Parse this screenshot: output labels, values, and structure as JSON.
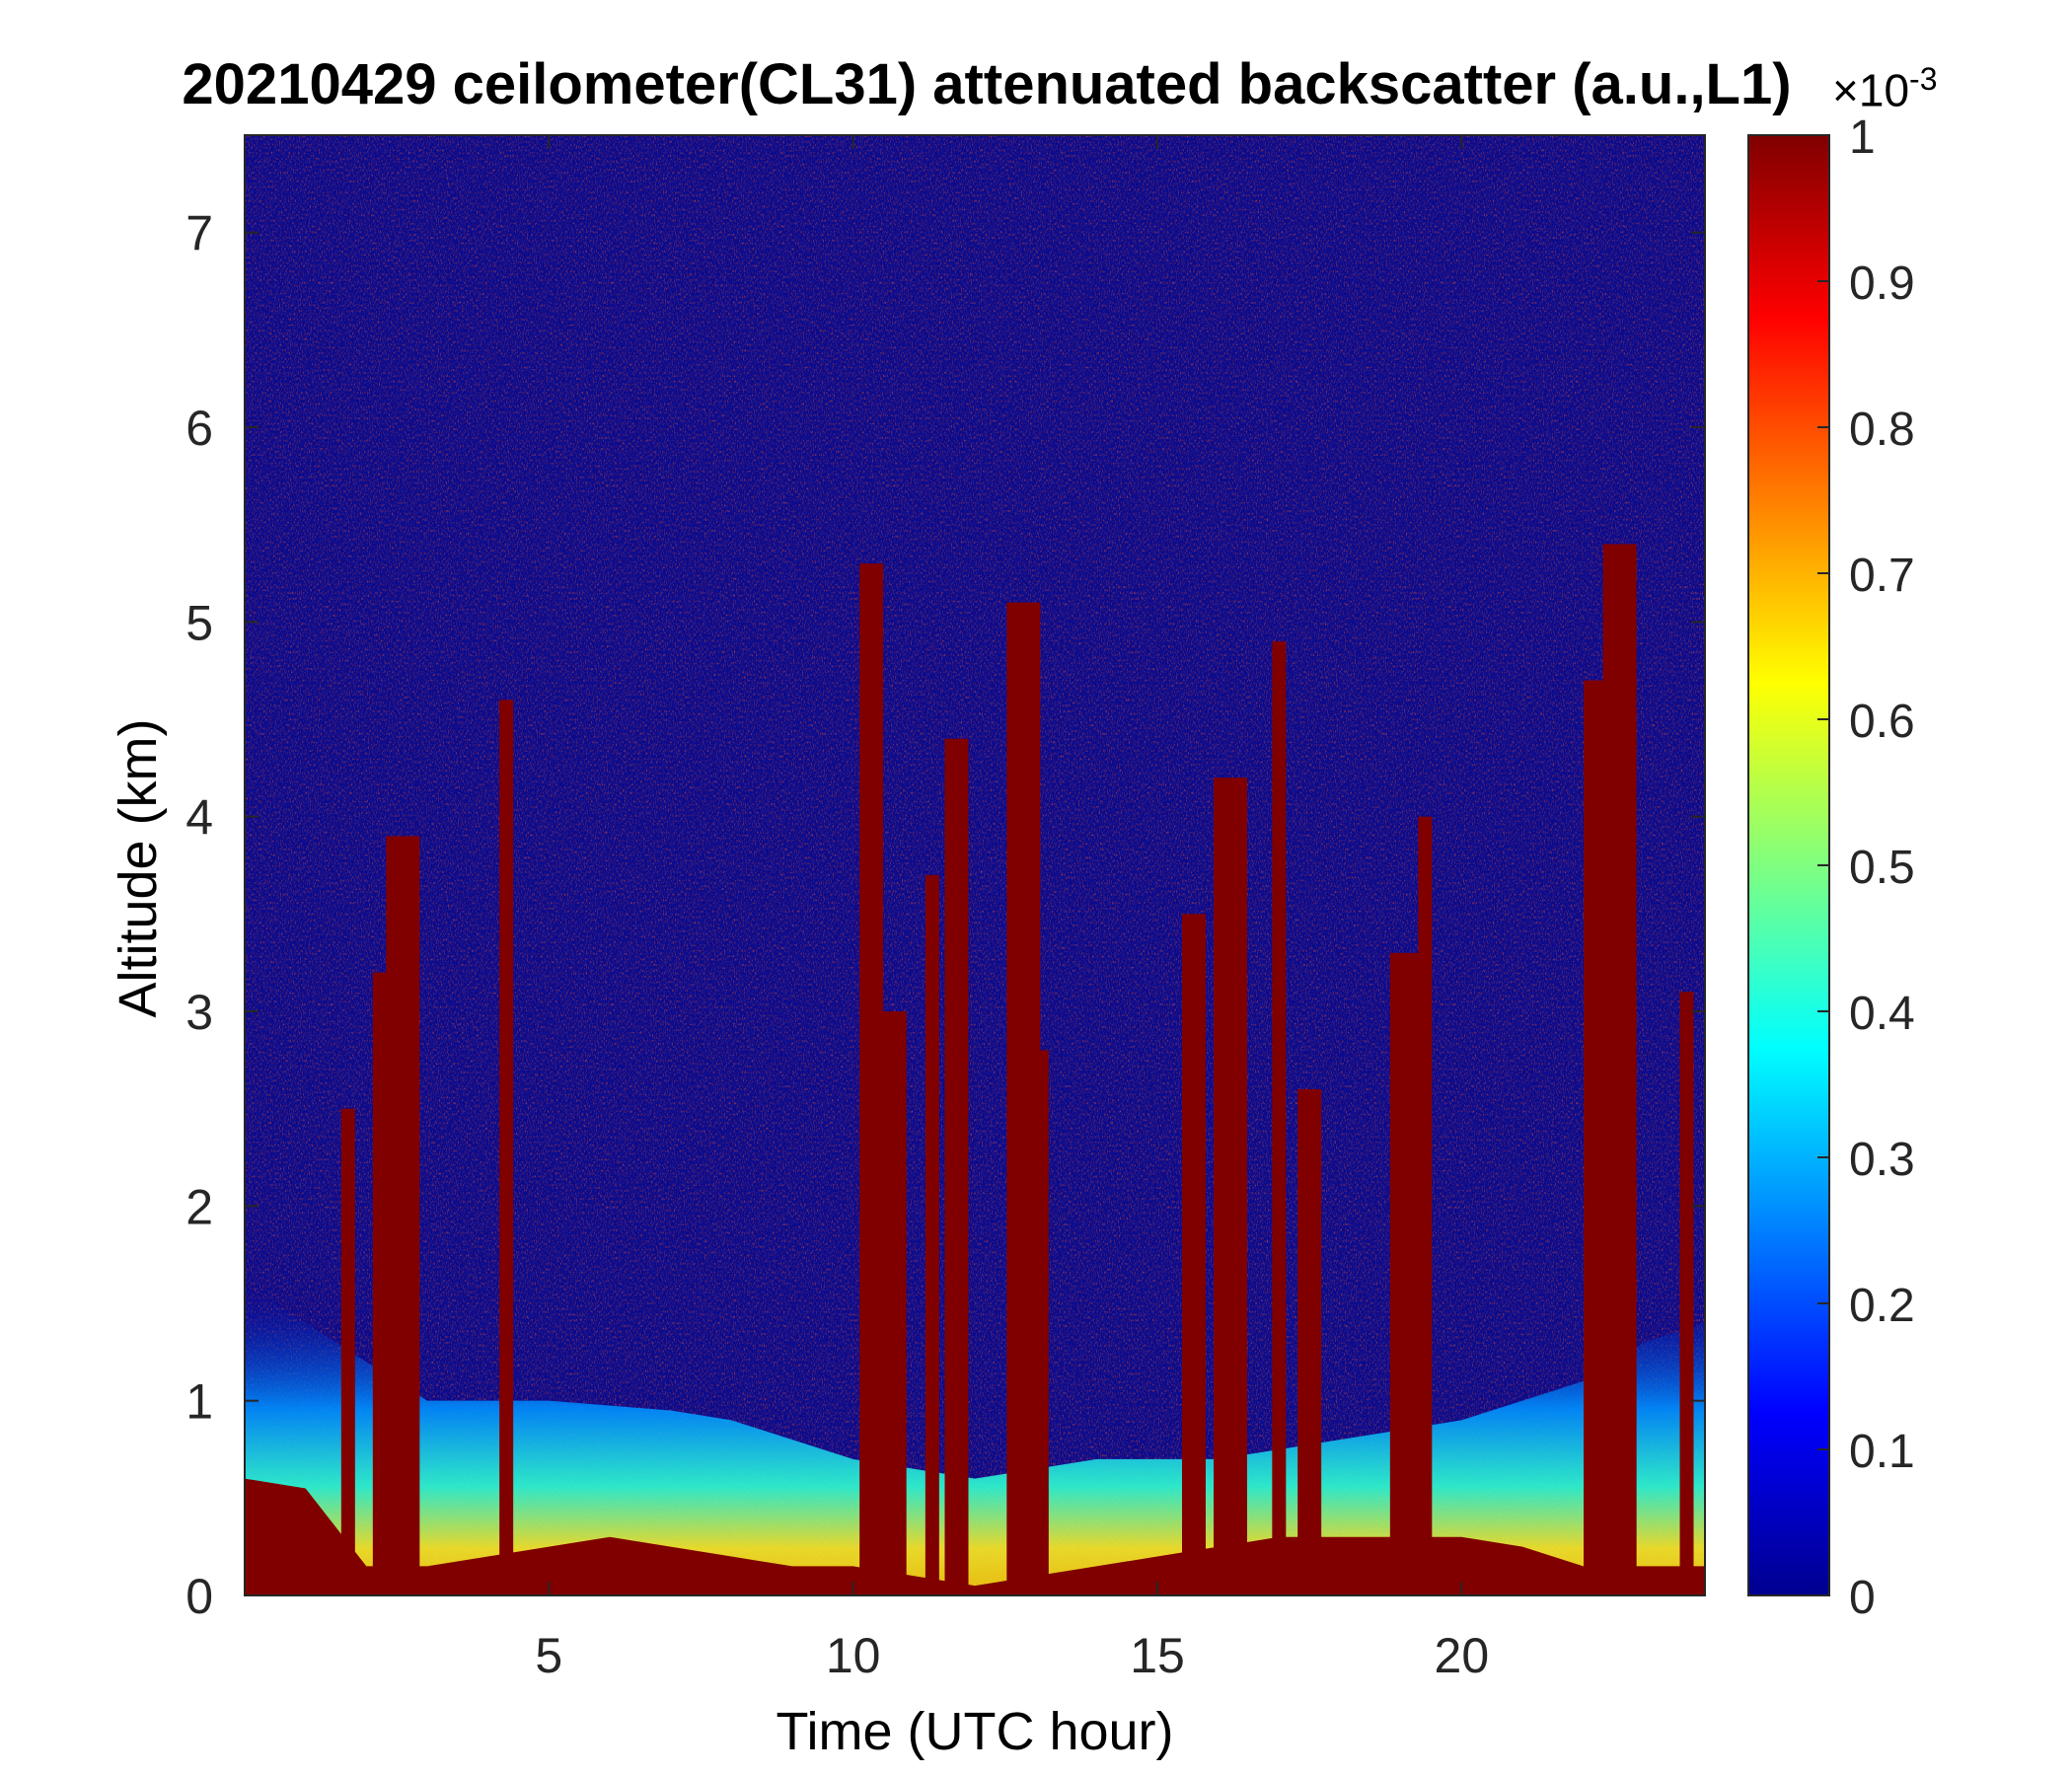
{
  "chart_data": {
    "type": "heatmap",
    "title": "20210429 ceilometer(CL31) attenuated backscatter (a.u.,L1)",
    "xlabel": "Time (UTC hour)",
    "ylabel": "Altitude (km)",
    "xlim": [
      0,
      24
    ],
    "ylim": [
      0,
      7.5
    ],
    "xticks": [
      5,
      10,
      15,
      20
    ],
    "yticks": [
      0,
      1,
      2,
      3,
      4,
      5,
      6,
      7
    ],
    "colormap": "jet",
    "colorbar": {
      "clim": [
        0,
        1
      ],
      "ticks": [
        0,
        0.1,
        0.2,
        0.3,
        0.4,
        0.5,
        0.6,
        0.7,
        0.8,
        0.9,
        1
      ],
      "multiplier_base": "×10",
      "multiplier_exponent": "-3"
    },
    "features": {
      "surface_layer_top_km": {
        "x": [
          0,
          1,
          2,
          3,
          4,
          5,
          6,
          7,
          8,
          9,
          10,
          11,
          12,
          13,
          14,
          15,
          16,
          17,
          18,
          19,
          20,
          21,
          22,
          23,
          24
        ],
        "y": [
          0.6,
          0.55,
          0.15,
          0.15,
          0.2,
          0.25,
          0.3,
          0.25,
          0.2,
          0.15,
          0.15,
          0.1,
          0.05,
          0.1,
          0.15,
          0.2,
          0.25,
          0.3,
          0.3,
          0.3,
          0.3,
          0.25,
          0.15,
          0.15,
          0.15
        ]
      },
      "aerosol_layer_top_km": {
        "x": [
          0,
          2,
          3,
          5,
          7,
          8,
          10,
          12,
          14,
          16,
          18,
          20,
          22,
          23,
          24
        ],
        "y": [
          1.6,
          1.2,
          1.0,
          1.0,
          0.95,
          0.9,
          0.7,
          0.6,
          0.7,
          0.7,
          0.8,
          0.9,
          1.1,
          1.3,
          1.4
        ]
      },
      "cloud_columns_hour": [
        1.7,
        2.3,
        2.6,
        4.3,
        10.3,
        10.6,
        11.3,
        11.7,
        12.8,
        13.1,
        15.6,
        16.2,
        17.0,
        17.5,
        19.1,
        19.4,
        22.2,
        22.6,
        23.7
      ]
    }
  }
}
